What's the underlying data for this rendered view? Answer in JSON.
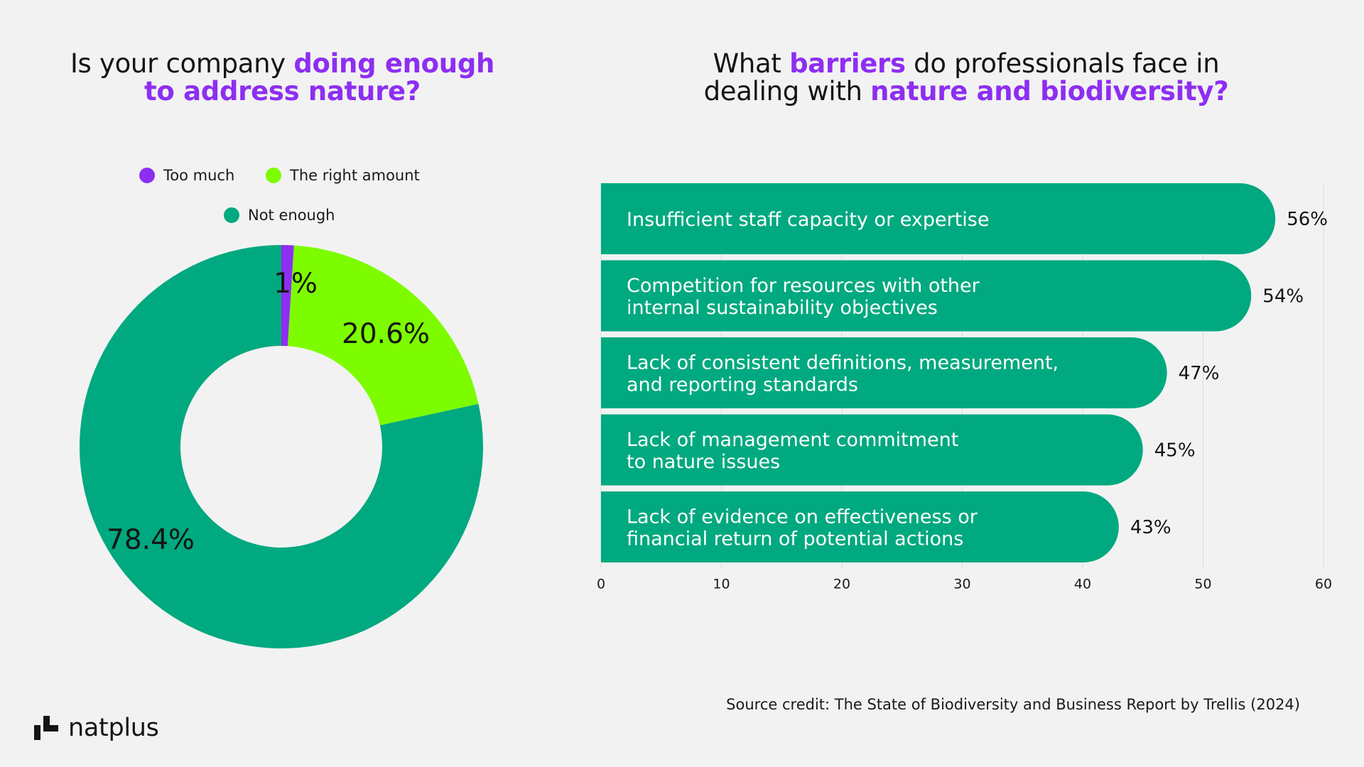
{
  "left_title": {
    "part1": "Is your company ",
    "highlight1": "doing enough",
    "highlight2": "to address nature?"
  },
  "right_title": {
    "part1": "What ",
    "highlight1": "barriers",
    "part2": " do professionals face in",
    "part3": "dealing with ",
    "highlight2": "nature and biodiversity?"
  },
  "colors": {
    "accent": "#8d2ef2",
    "too_much": "#8d2ef2",
    "right_amount": "#7dfc00",
    "not_enough": "#00a97f",
    "bar": "#00a97f"
  },
  "chart_data": [
    {
      "type": "pie",
      "donut": true,
      "legend": [
        "Too much",
        "The right amount",
        "Not enough"
      ],
      "legend_placement": "top",
      "slices": [
        {
          "label": "Too much",
          "value": 1,
          "display": "1%"
        },
        {
          "label": "The right amount",
          "value": 20.6,
          "display": "20.6%"
        },
        {
          "label": "Not enough",
          "value": 78.4,
          "display": "78.4%"
        }
      ]
    },
    {
      "type": "bar",
      "orientation": "horizontal",
      "categories": [
        [
          "Insufficient staff capacity or expertise"
        ],
        [
          "Competition for resources with other",
          "internal sustainability objectives"
        ],
        [
          "Lack of consistent definitions, measurement,",
          "and reporting standards"
        ],
        [
          "Lack of management commitment",
          "to nature issues"
        ],
        [
          "Lack of evidence on effectiveness or",
          "financial return of potential actions"
        ]
      ],
      "values": [
        56,
        54,
        47,
        45,
        43
      ],
      "value_labels": [
        "56%",
        "54%",
        "47%",
        "45%",
        "43%"
      ],
      "xlim": [
        0,
        60
      ],
      "xticks": [
        "0",
        "10",
        "20",
        "30",
        "40",
        "50",
        "60"
      ],
      "grid": true
    }
  ],
  "footer": {
    "source_credit": "Source credit: The State of Biodiversity and Business Report by Trellis (2024)",
    "logo_text": "natplus"
  }
}
